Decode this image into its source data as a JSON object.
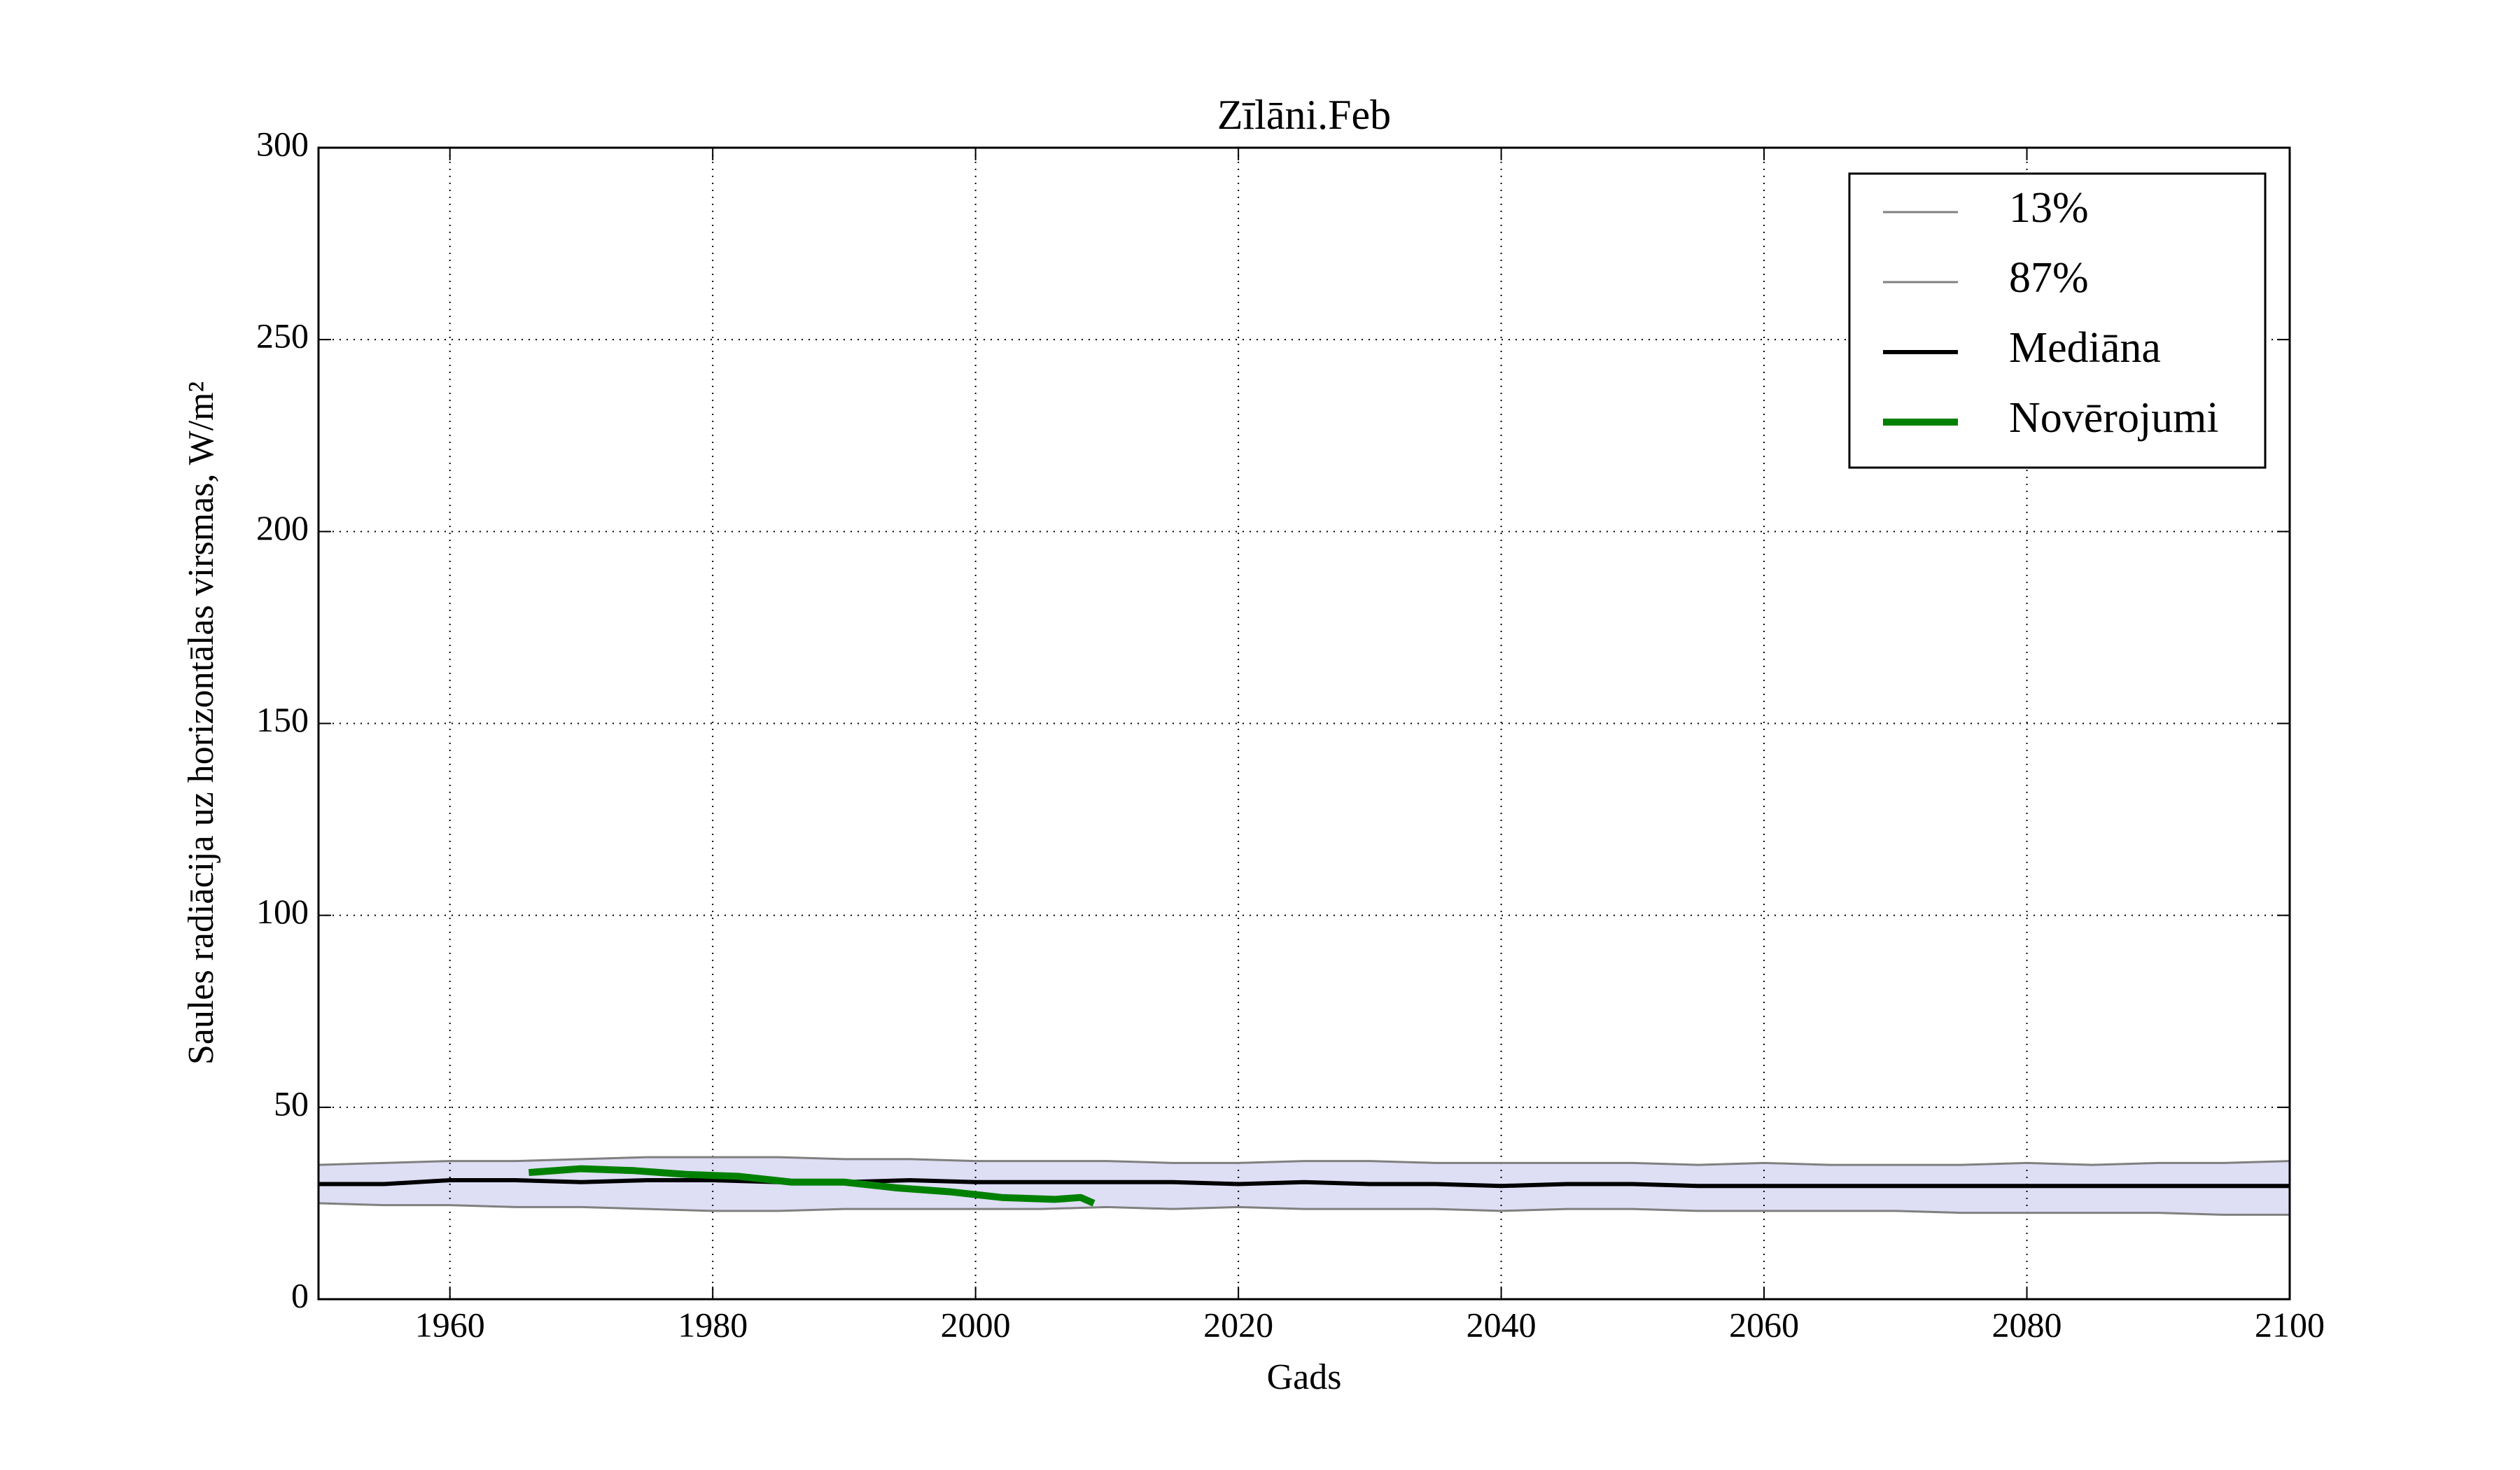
{
  "chart_data": {
    "type": "line",
    "title": "Zīlāni.Feb",
    "xlabel": "Gads",
    "ylabel": "Saules radiācija uz horizontālas virsmas, W/m²",
    "xlim": [
      1950,
      2100
    ],
    "xticks": [
      1960,
      1980,
      2000,
      2020,
      2040,
      2060,
      2080,
      2100
    ],
    "ylim": [
      0,
      300
    ],
    "yticks": [
      0,
      50,
      100,
      150,
      200,
      250,
      300
    ],
    "grid": true,
    "legend": "upper right",
    "band_color": "#d6d6f2",
    "series": [
      {
        "name": "13%",
        "color": "#808080",
        "width": 3,
        "x": [
          1950,
          1955,
          1960,
          1965,
          1970,
          1975,
          1980,
          1985,
          1990,
          1995,
          2000,
          2005,
          2010,
          2015,
          2020,
          2025,
          2030,
          2035,
          2040,
          2045,
          2050,
          2055,
          2060,
          2065,
          2070,
          2075,
          2080,
          2085,
          2090,
          2095,
          2100
        ],
        "values": [
          25,
          24.5,
          24.5,
          24,
          24,
          23.5,
          23,
          23,
          23.5,
          23.5,
          23.5,
          23.5,
          24,
          23.5,
          24,
          23.5,
          23.5,
          23.5,
          23,
          23.5,
          23.5,
          23,
          23,
          23,
          23,
          22.5,
          22.5,
          22.5,
          22.5,
          22,
          22
        ]
      },
      {
        "name": "87%",
        "color": "#808080",
        "width": 3,
        "x": [
          1950,
          1955,
          1960,
          1965,
          1970,
          1975,
          1980,
          1985,
          1990,
          1995,
          2000,
          2005,
          2010,
          2015,
          2020,
          2025,
          2030,
          2035,
          2040,
          2045,
          2050,
          2055,
          2060,
          2065,
          2070,
          2075,
          2080,
          2085,
          2090,
          2095,
          2100
        ],
        "values": [
          35,
          35.5,
          36,
          36,
          36.5,
          37,
          37,
          37,
          36.5,
          36.5,
          36,
          36,
          36,
          35.5,
          35.5,
          36,
          36,
          35.5,
          35.5,
          35.5,
          35.5,
          35,
          35.5,
          35,
          35,
          35,
          35.5,
          35,
          35.5,
          35.5,
          36
        ]
      },
      {
        "name": "Mediāna",
        "color": "#000000",
        "width": 6,
        "x": [
          1950,
          1955,
          1960,
          1965,
          1970,
          1975,
          1980,
          1985,
          1990,
          1995,
          2000,
          2005,
          2010,
          2015,
          2020,
          2025,
          2030,
          2035,
          2040,
          2045,
          2050,
          2055,
          2060,
          2065,
          2070,
          2075,
          2080,
          2085,
          2090,
          2095,
          2100
        ],
        "values": [
          30,
          30,
          31,
          31,
          30.5,
          31,
          31,
          30.5,
          30.5,
          31,
          30.5,
          30.5,
          30.5,
          30.5,
          30,
          30.5,
          30,
          30,
          29.5,
          30,
          30,
          29.5,
          29.5,
          29.5,
          29.5,
          29.5,
          29.5,
          29.5,
          29.5,
          29.5,
          29.5
        ]
      },
      {
        "name": "Novērojumi",
        "color": "#008000",
        "width": 10,
        "x": [
          1966,
          1970,
          1974,
          1978,
          1982,
          1986,
          1990,
          1994,
          1998,
          2002,
          2006,
          2008,
          2009
        ],
        "values": [
          33,
          34,
          33.5,
          32.5,
          32,
          30.5,
          30.5,
          29,
          28,
          26.5,
          26,
          26.5,
          25
        ]
      }
    ]
  }
}
